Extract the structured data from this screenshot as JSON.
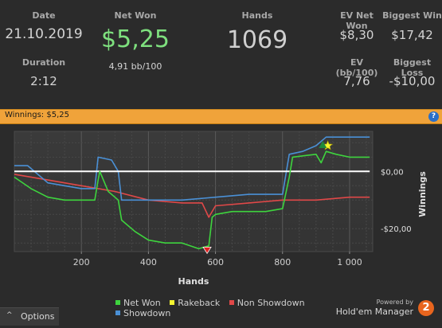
{
  "stats": {
    "date_label": "Date",
    "date_value": "21.10.2019",
    "duration_label": "Duration",
    "duration_value": "2:12",
    "net_won_label": "Net Won",
    "net_won_value": "$5,25",
    "net_won_sub": "4,91 bb/100",
    "hands_label": "Hands",
    "hands_value": "1069",
    "ev_net_won_label": "EV Net Won",
    "ev_net_won_value": "$8,30",
    "biggest_win_label": "Biggest Win",
    "biggest_win_value": "$17,42",
    "ev_bb_label": "EV (bb/100)",
    "ev_bb_value": "7,76",
    "biggest_loss_label": "Biggest Loss",
    "biggest_loss_value": "-$10,00"
  },
  "banner": {
    "text": "Winnings: $5,25",
    "help": "?"
  },
  "footer": {
    "options_label": "Options",
    "powered_by": "Powered by",
    "brand": "Hold'em Manager",
    "brand_num": "2"
  },
  "colors": {
    "net_won": "#3ed43e",
    "rakeback": "#f5f531",
    "non_showdown": "#e04848",
    "showdown": "#4a90d6",
    "accent": "#f0a33a",
    "net_won_value": "#7ee07e"
  },
  "chart_data": {
    "type": "line",
    "xlabel": "Hands",
    "ylabel": "Winnings",
    "xlim": [
      0,
      1069
    ],
    "ylim": [
      -28,
      14
    ],
    "x_ticks": [
      200,
      400,
      600,
      800,
      1000
    ],
    "x_tick_labels": [
      "200",
      "400",
      "600",
      "800",
      "1 000"
    ],
    "y_ticks": [
      0,
      -20
    ],
    "y_tick_labels": [
      "$0,00",
      "-$20,00"
    ],
    "grid": true,
    "legend_position": "bottom",
    "legend": [
      "Net Won",
      "Rakeback",
      "Non Showdown",
      "Showdown"
    ],
    "series": [
      {
        "name": "Net Won",
        "x": [
          0,
          50,
          100,
          150,
          200,
          240,
          250,
          255,
          280,
          310,
          320,
          360,
          400,
          450,
          500,
          550,
          580,
          590,
          600,
          650,
          700,
          750,
          800,
          820,
          830,
          900,
          915,
          930,
          960,
          1000,
          1060
        ],
        "values": [
          -2,
          -6,
          -9,
          -10,
          -10,
          -10,
          -3,
          0,
          -7,
          -10,
          -17,
          -21,
          -24,
          -25,
          -25,
          -27,
          -26,
          -16,
          -15,
          -14,
          -14,
          -14,
          -13,
          -2,
          5,
          6,
          3,
          7,
          6,
          5,
          5
        ]
      },
      {
        "name": "Rakeback",
        "x": [
          0,
          1060
        ],
        "values": [
          0,
          0
        ]
      },
      {
        "name": "Non Showdown",
        "x": [
          0,
          100,
          200,
          300,
          400,
          500,
          560,
          580,
          600,
          700,
          800,
          900,
          1000,
          1060
        ],
        "values": [
          -1,
          -3,
          -5,
          -7,
          -10,
          -11,
          -11,
          -16,
          -12,
          -11,
          -10,
          -10,
          -9,
          -9
        ]
      },
      {
        "name": "Showdown",
        "x": [
          0,
          40,
          100,
          200,
          240,
          250,
          290,
          310,
          320,
          400,
          500,
          600,
          700,
          800,
          820,
          860,
          900,
          930,
          1000,
          1060
        ],
        "values": [
          2,
          2,
          -4,
          -6,
          -6,
          5,
          4,
          0,
          -10,
          -10,
          -10,
          -9,
          -8,
          -8,
          6,
          7,
          9,
          12,
          12,
          12
        ]
      }
    ],
    "markers": [
      {
        "type": "star",
        "color": "#f5f531",
        "x": 935,
        "y": 9
      },
      {
        "type": "triangle-up",
        "color": "#1f8a3a",
        "x": 920,
        "y": 9
      },
      {
        "type": "triangle-down",
        "color": "#e02020",
        "x": 575,
        "y": -27
      }
    ]
  }
}
